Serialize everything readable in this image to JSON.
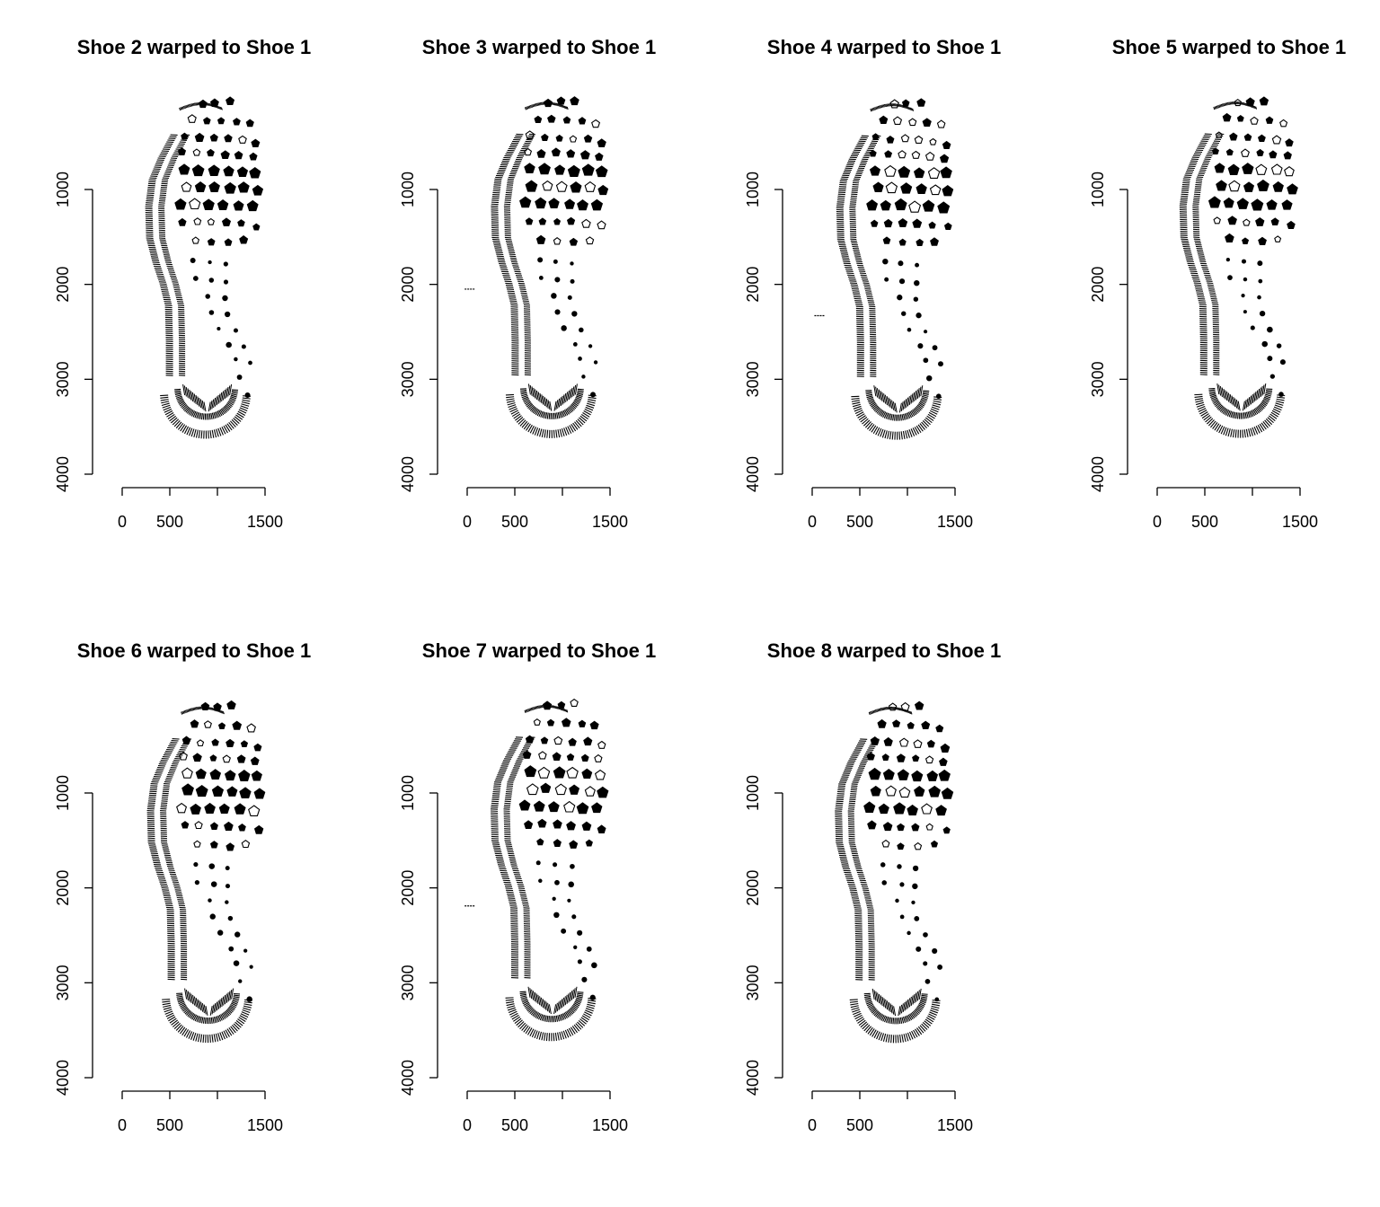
{
  "figure": {
    "layout": {
      "rows": 2,
      "cols": 4
    }
  },
  "chart_data": [
    {
      "type": "scatter",
      "title": "Shoe 2 warped to Shoe 1",
      "xlim": [
        0,
        1500
      ],
      "ylim": [
        4000,
        1000
      ],
      "x_ticks": [
        "0",
        "500",
        "1500"
      ],
      "y_ticks": [
        "1000",
        "2000",
        "3000",
        "4000"
      ],
      "stray_mark": null
    },
    {
      "type": "scatter",
      "title": "Shoe 3 warped to Shoe 1",
      "xlim": [
        0,
        1500
      ],
      "ylim": [
        4000,
        1000
      ],
      "x_ticks": [
        "0",
        "500",
        "1500"
      ],
      "y_ticks": [
        "1000",
        "2000",
        "3000",
        "4000"
      ],
      "stray_mark": {
        "x": 30,
        "y": 2050
      }
    },
    {
      "type": "scatter",
      "title": "Shoe 4 warped to Shoe 1",
      "xlim": [
        0,
        1500
      ],
      "ylim": [
        4000,
        1000
      ],
      "x_ticks": [
        "0",
        "500",
        "1500"
      ],
      "y_ticks": [
        "1000",
        "2000",
        "3000",
        "4000"
      ],
      "stray_mark": {
        "x": 80,
        "y": 2330
      }
    },
    {
      "type": "scatter",
      "title": "Shoe 5 warped to Shoe 1",
      "xlim": [
        0,
        1500
      ],
      "ylim": [
        4000,
        1000
      ],
      "x_ticks": [
        "0",
        "500",
        "1500"
      ],
      "y_ticks": [
        "1000",
        "2000",
        "3000",
        "4000"
      ],
      "stray_mark": null
    },
    {
      "type": "scatter",
      "title": "Shoe 6 warped to Shoe 1",
      "xlim": [
        0,
        1500
      ],
      "ylim": [
        4000,
        1000
      ],
      "x_ticks": [
        "0",
        "500",
        "1500"
      ],
      "y_ticks": [
        "1000",
        "2000",
        "3000",
        "4000"
      ],
      "stray_mark": null
    },
    {
      "type": "scatter",
      "title": "Shoe 7 warped to Shoe 1",
      "xlim": [
        0,
        1500
      ],
      "ylim": [
        4000,
        1000
      ],
      "x_ticks": [
        "0",
        "500",
        "1500"
      ],
      "y_ticks": [
        "1000",
        "2000",
        "3000",
        "4000"
      ],
      "stray_mark": {
        "x": 30,
        "y": 2190
      }
    },
    {
      "type": "scatter",
      "title": "Shoe 8 warped to Shoe 1",
      "xlim": [
        0,
        1500
      ],
      "ylim": [
        4000,
        1000
      ],
      "x_ticks": [
        "0",
        "500",
        "1500"
      ],
      "y_ticks": [
        "1000",
        "2000",
        "3000",
        "4000"
      ],
      "stray_mark": null
    }
  ]
}
